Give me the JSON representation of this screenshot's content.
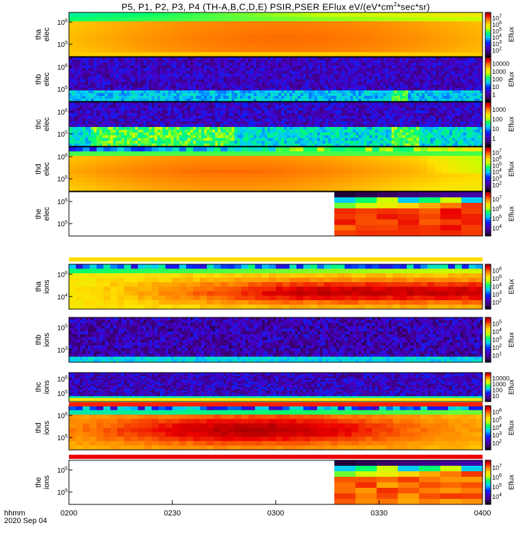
{
  "header": {
    "title_pre": "P5, P1, P2, P3, P4 (TH-A,B,C,D,E) PSIR,PSER EFlux eV/(eV*cm",
    "title_sup": "2",
    "title_post": "*sec*sr)"
  },
  "footer": {
    "xunit": "hhmm",
    "date": "2020 Sep 04"
  },
  "chart_data": {
    "type": "heatmap",
    "x_tick_labels": [
      "0200",
      "0230",
      "0300",
      "0330",
      "0400"
    ],
    "x_range": [
      "02:00",
      "04:00"
    ],
    "y_scale": "log",
    "colormap": "rainbow (black/purple/blue/cyan/green/yellow/orange/red)",
    "colorbar_title": "Eflux",
    "panels": [
      {
        "id": "tha-elec",
        "line1": "tha",
        "line2": "elec",
        "y_ticks": [
          "10^6",
          "10^5"
        ],
        "cbar_ticks": [
          "10^7",
          "10^6",
          "10^5",
          "10^4",
          "10^3",
          "10^2"
        ],
        "kind": "elec-a"
      },
      {
        "id": "thb-elec",
        "line1": "thb",
        "line2": "elec",
        "y_ticks": [
          "10^6",
          "10^5"
        ],
        "cbar_ticks": [
          "10000",
          "1000",
          "100",
          "10",
          "1"
        ],
        "kind": "noise-b"
      },
      {
        "id": "thc-elec",
        "line1": "thc",
        "line2": "elec",
        "y_ticks": [
          "10^6",
          "10^5"
        ],
        "cbar_ticks": [
          "1000",
          "100",
          "10",
          "1"
        ],
        "kind": "noise-c"
      },
      {
        "id": "thd-elec",
        "line1": "thd",
        "line2": "elec",
        "y_ticks": [
          "10^6",
          "10^5"
        ],
        "cbar_ticks": [
          "10^7",
          "10^6",
          "10^5",
          "10^4",
          "10^3",
          "10^2"
        ],
        "kind": "elec-d"
      },
      {
        "id": "the-elec",
        "line1": "the",
        "line2": "elec",
        "y_ticks": [
          "10^6",
          "10^5"
        ],
        "cbar_ticks": [
          "10^7",
          "10^6",
          "10^5",
          "10^4"
        ],
        "kind": "partial-e",
        "data_start": "03:17"
      },
      {
        "id": "tha-ions",
        "line1": "tha",
        "line2": "ions",
        "y_ticks": [
          "10^6",
          "10^4"
        ],
        "cbar_ticks": [
          "10^6",
          "10^5",
          "10^4",
          "10^3",
          "10^2"
        ],
        "kind": "ions-a"
      },
      {
        "id": "thb-ions",
        "line1": "thb",
        "line2": "ions",
        "y_ticks": [
          "10^5",
          "10^3"
        ],
        "cbar_ticks": [
          "10^5",
          "10^4",
          "10^3",
          "10^2",
          "10^1"
        ],
        "kind": "noise-bi"
      },
      {
        "id": "thc-ions",
        "line1": "thc",
        "line2": "ions",
        "y_ticks": [
          "10^6",
          "10^5"
        ],
        "cbar_ticks": [
          "10000",
          "1000",
          "100",
          "10"
        ],
        "kind": "noise-ci"
      },
      {
        "id": "thd-ions",
        "line1": "thd",
        "line2": "ions",
        "y_ticks": [
          "10^6",
          "10^5"
        ],
        "cbar_ticks": [
          "10^6",
          "10^5",
          "10^4",
          "10^3",
          "10^2"
        ],
        "kind": "ions-d"
      },
      {
        "id": "the-ions",
        "line1": "the",
        "line2": "ions",
        "y_ticks": [
          "10^5",
          "10^5"
        ],
        "cbar_ticks": [
          "10^7",
          "10^6",
          "10^5",
          "10^4"
        ],
        "kind": "partial-ei",
        "data_start": "03:17"
      }
    ]
  }
}
